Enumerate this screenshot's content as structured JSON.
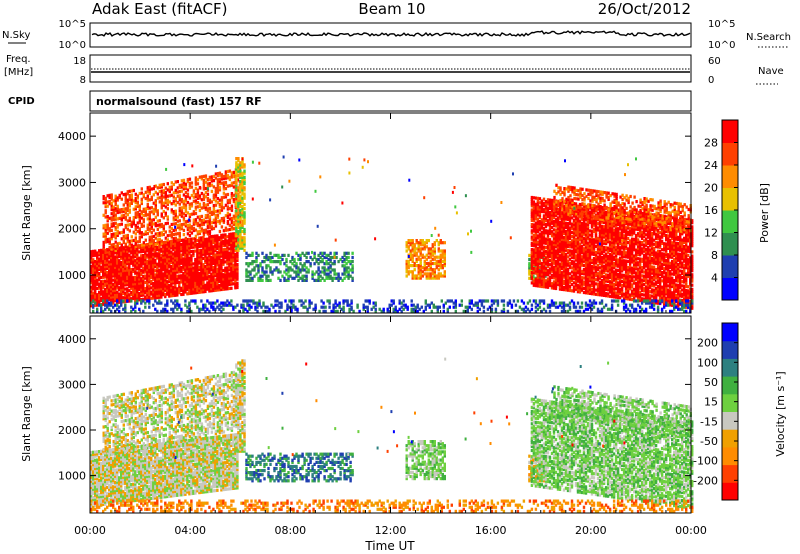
{
  "header": {
    "station": "Adak East (fitACF)",
    "beam": "Beam 10",
    "date": "26/Oct/2012"
  },
  "noise_panel": {
    "left_label": "N.Sky",
    "left_ticks": [
      "10^5",
      "10^0"
    ],
    "right_label": "N.Search",
    "right_ticks": [
      "10^5",
      "10^0"
    ]
  },
  "freq_panel": {
    "left_label_line1": "Freq.",
    "left_label_line2": "[MHz]",
    "left_ticks": [
      "18",
      "8"
    ],
    "right_label": "Nave",
    "right_ticks": [
      "60",
      "0"
    ]
  },
  "cpid_panel": {
    "label": "CPID",
    "text": "normalsound (fast) 157 RF"
  },
  "colors": {
    "power_scale": [
      "#0000ff",
      "#1f3fb0",
      "#2f8f50",
      "#40c840",
      "#e8c000",
      "#ff8c00",
      "#ff4000",
      "#ff0000"
    ],
    "velocity_scale": [
      "#ff0000",
      "#ff4000",
      "#ff8c00",
      "#f0a000",
      "#c8c8c0",
      "#6ed040",
      "#40b040",
      "#2d8080",
      "#1f3fb0",
      "#0000ff"
    ]
  },
  "chart_data": [
    {
      "type": "heatmap",
      "name": "power",
      "ylabel": "Slant Range [km]",
      "xlabel": "Time UT",
      "x_ticks": [
        "00:00",
        "04:00",
        "08:00",
        "12:00",
        "16:00",
        "20:00",
        "00:00"
      ],
      "y_ticks": [
        "1000",
        "2000",
        "3000",
        "4000"
      ],
      "xlim_hours": [
        0,
        24
      ],
      "ylim_km": [
        180,
        4500
      ],
      "colorbar_label": "Power [dB]",
      "colorbar_ticks": [
        "4",
        "8",
        "12",
        "16",
        "20",
        "24",
        "28"
      ],
      "regions": [
        {
          "t0": 0.0,
          "t1": 5.9,
          "r0": 500,
          "r1": 1700,
          "level": 7,
          "density": 0.9,
          "slope": 400
        },
        {
          "t0": 0.5,
          "t1": 6.0,
          "r0": 1700,
          "r1": 3000,
          "level": 6,
          "density": 0.5,
          "slope": 600
        },
        {
          "t0": 5.8,
          "t1": 6.2,
          "r0": 1500,
          "r1": 3500,
          "level": 4,
          "density": 0.7,
          "slope": 0
        },
        {
          "t0": 6.2,
          "t1": 10.5,
          "r0": 850,
          "r1": 1450,
          "level": 2,
          "density": 0.45,
          "slope": 0
        },
        {
          "t0": 12.6,
          "t1": 14.2,
          "r0": 900,
          "r1": 1750,
          "level": 5,
          "density": 0.6,
          "slope": 0
        },
        {
          "t0": 17.5,
          "t1": 18.2,
          "r0": 850,
          "r1": 1400,
          "level": 3,
          "density": 0.6,
          "slope": 0
        },
        {
          "t0": 17.6,
          "t1": 24.0,
          "r0": 500,
          "r1": 2400,
          "level": 7,
          "density": 0.85,
          "slope": -500
        },
        {
          "t0": 18.5,
          "t1": 24.0,
          "r0": 2100,
          "r1": 2700,
          "level": 6,
          "density": 0.5,
          "slope": -450
        },
        {
          "t0": 0.0,
          "t1": 24.0,
          "r0": 180,
          "r1": 420,
          "level": 1,
          "density": 0.35,
          "slope": 0
        }
      ]
    },
    {
      "type": "heatmap",
      "name": "velocity",
      "ylabel": "Slant Range [km]",
      "xlabel": "Time UT",
      "x_ticks": [
        "00:00",
        "04:00",
        "08:00",
        "12:00",
        "16:00",
        "20:00",
        "00:00"
      ],
      "y_ticks": [
        "1000",
        "2000",
        "3000",
        "4000"
      ],
      "xlim_hours": [
        0,
        24
      ],
      "ylim_km": [
        180,
        4500
      ],
      "colorbar_label": "Velocity [m s⁻¹]",
      "colorbar_ticks": [
        "-200",
        "-100",
        "-50",
        "-15",
        "15",
        "50",
        "100",
        "200"
      ],
      "regions": [
        {
          "t0": 0.0,
          "t1": 5.9,
          "r0": 500,
          "r1": 1700,
          "level": 4,
          "density": 0.9,
          "slope": 400
        },
        {
          "t0": 0.5,
          "t1": 6.0,
          "r0": 1700,
          "r1": 3000,
          "level": 4,
          "density": 0.5,
          "slope": 600
        },
        {
          "t0": 5.8,
          "t1": 6.2,
          "r0": 1500,
          "r1": 3500,
          "level": 4,
          "density": 0.7,
          "slope": 0
        },
        {
          "t0": 6.2,
          "t1": 10.5,
          "r0": 850,
          "r1": 1450,
          "level": 7,
          "density": 0.45,
          "slope": 0
        },
        {
          "t0": 12.6,
          "t1": 14.2,
          "r0": 900,
          "r1": 1750,
          "level": 5,
          "density": 0.6,
          "slope": 0
        },
        {
          "t0": 17.5,
          "t1": 18.2,
          "r0": 850,
          "r1": 1400,
          "level": 3,
          "density": 0.6,
          "slope": 0
        },
        {
          "t0": 17.6,
          "t1": 24.0,
          "r0": 500,
          "r1": 2400,
          "level": 5,
          "density": 0.7,
          "slope": -500
        },
        {
          "t0": 18.5,
          "t1": 24.0,
          "r0": 2100,
          "r1": 2700,
          "level": 5,
          "density": 0.5,
          "slope": -450
        },
        {
          "t0": 0.0,
          "t1": 24.0,
          "r0": 180,
          "r1": 420,
          "level": 2,
          "density": 0.35,
          "slope": 0
        }
      ]
    }
  ]
}
